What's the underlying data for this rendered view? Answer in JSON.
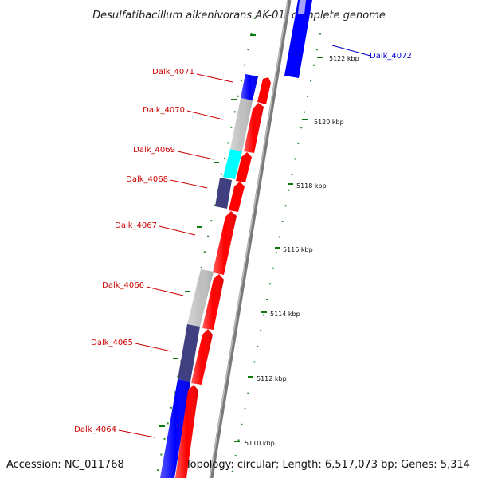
{
  "title": "Desulfatibacillum alkenivorans AK-01, complete genome",
  "footer": {
    "accession": "Accession: NC_011768",
    "topology": "Topology: circular; Length: 6,517,073 bp; Genes: 5,314"
  },
  "colors": {
    "forward_gene": "#ff0000",
    "reverse_blue": "#0000ff",
    "reverse_gray": "#c0c0c0",
    "reverse_cyan": "#00ffff",
    "reverse_navy": "#404080",
    "label_red": "#cc0000",
    "label_blue": "#0000cc",
    "tick_green": "#008000",
    "backbone": "#808080"
  },
  "ticks": [
    "5122 kbp",
    "5120 kbp",
    "5118 kbp",
    "5116 kbp",
    "5114 kbp",
    "5112 kbp",
    "5110 kbp"
  ],
  "gene_labels": [
    "Dalk_4072",
    "Dalk_4071",
    "Dalk_4070",
    "Dalk_4069",
    "Dalk_4068",
    "Dalk_4067",
    "Dalk_4066",
    "Dalk_4065",
    "Dalk_4064"
  ]
}
